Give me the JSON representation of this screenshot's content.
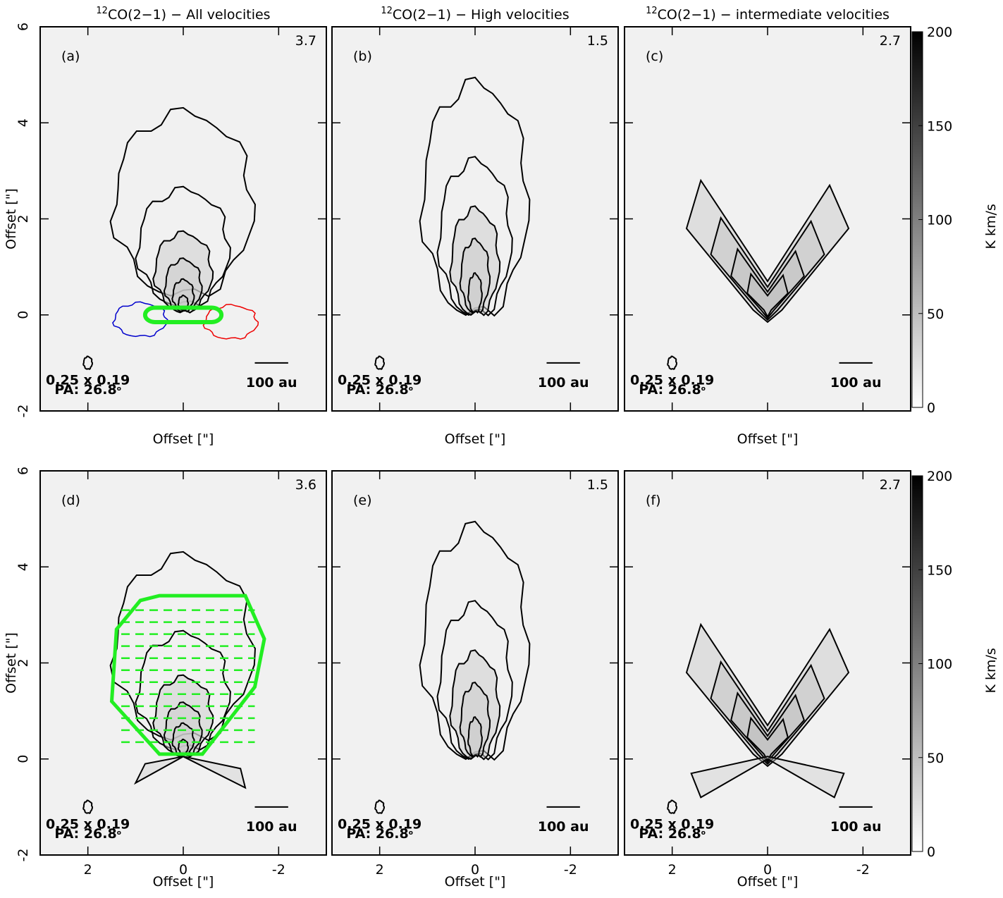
{
  "titles": [
    {
      "sup": "12",
      "text": "CO(2−1) − All velocities"
    },
    {
      "sup": "12",
      "text": "CO(2−1) − High velocities"
    },
    {
      "sup": "12",
      "text": "CO(2−1) − intermediate velocities"
    }
  ],
  "panels": [
    {
      "label": "(a)",
      "peak": "3.7",
      "beam": "0.25 x 0.19",
      "pa": "PA: 26.8",
      "pa_sup": "o",
      "scale": "100 au"
    },
    {
      "label": "(b)",
      "peak": "1.5",
      "beam": "0.25 x 0.19",
      "pa": "PA: 26.8",
      "pa_sup": "o",
      "scale": "100 au"
    },
    {
      "label": "(c)",
      "peak": "2.7",
      "beam": "0.25 x 0.19",
      "pa": "PA: 26.8",
      "pa_sup": "o",
      "scale": "100 au"
    },
    {
      "label": "(d)",
      "peak": "3.6",
      "beam": "0.25 x 0.19",
      "pa": "PA: 26.8",
      "pa_sup": "o",
      "scale": "100 au"
    },
    {
      "label": "(e)",
      "peak": "1.5",
      "beam": "0.25 x 0.19",
      "pa": "PA: 26.8",
      "pa_sup": "o",
      "scale": "100 au"
    },
    {
      "label": "(f)",
      "peak": "2.7",
      "beam": "0.25 x 0.19",
      "pa": "PA: 26.8",
      "pa_sup": "o",
      "scale": "100 au"
    }
  ],
  "xlabel": "Offset [\"]",
  "ylabel": "Offset [\"]",
  "xlim": [
    3,
    -3
  ],
  "xticks": [
    2,
    0,
    -2
  ],
  "ylim": [
    -2,
    6
  ],
  "yticks": [
    -2,
    0,
    2,
    4,
    6
  ],
  "colorbar": {
    "label": "K km/s",
    "lim": [
      0,
      200
    ],
    "ticks": [
      0,
      50,
      100,
      150,
      200
    ]
  }
}
